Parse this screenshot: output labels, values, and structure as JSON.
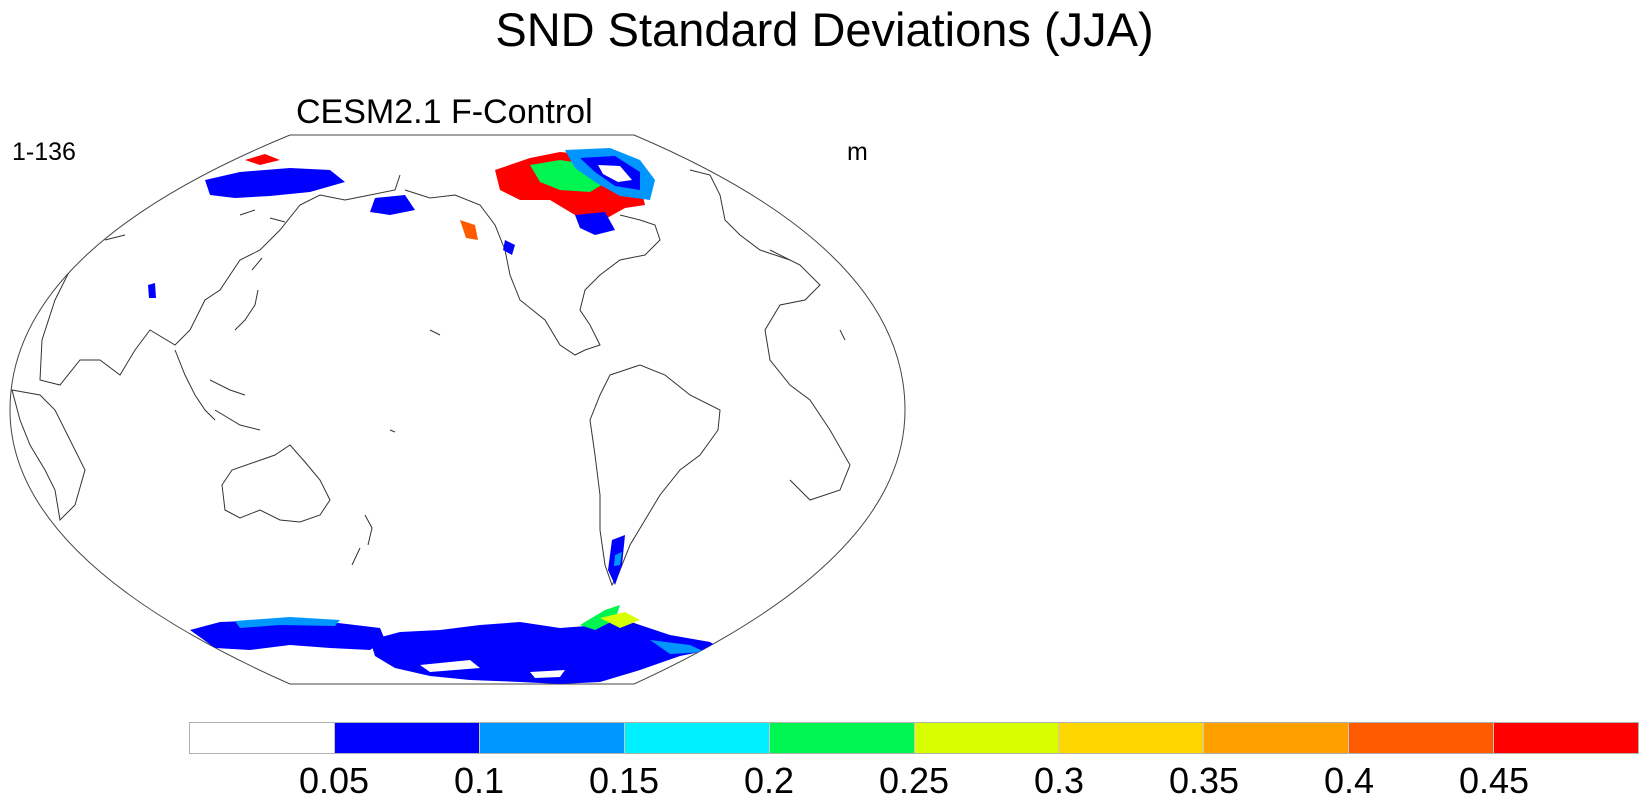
{
  "title": "SND Standard Deviations (JJA)",
  "panel": {
    "title": "CESM2.1 F-Control",
    "left_label": "1-136",
    "right_label": "m"
  },
  "colorbar": {
    "colors": [
      "#ffffff",
      "#0000ff",
      "#0096ff",
      "#00f0ff",
      "#00f550",
      "#d7ff00",
      "#ffd700",
      "#ffa000",
      "#ff5a00",
      "#ff0000"
    ],
    "labels": [
      "0.05",
      "0.1",
      "0.15",
      "0.2",
      "0.25",
      "0.3",
      "0.35",
      "0.4",
      "0.45"
    ]
  }
}
